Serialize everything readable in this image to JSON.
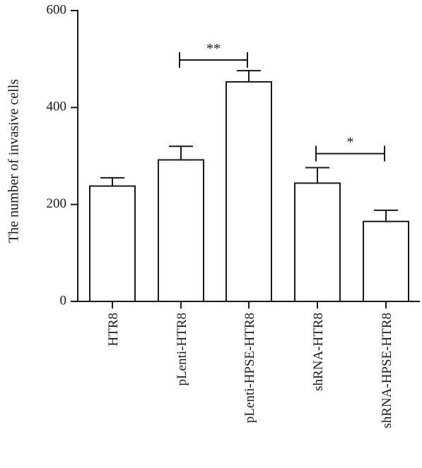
{
  "chart_data": {
    "type": "bar",
    "title": "",
    "xlabel": "",
    "ylabel": "The number of invasive cells",
    "ylim": [
      0,
      600
    ],
    "yticks": [
      0,
      200,
      400,
      600
    ],
    "grid": false,
    "legend": "none",
    "categories": [
      "HTR8",
      "pLenti-HTR8",
      "pLenti-HPSE-HTR8",
      "shRNA-HTR8",
      "shRNA-HPSE-HTR8"
    ],
    "values": [
      238,
      292,
      453,
      244,
      165
    ],
    "errors": [
      17,
      28,
      23,
      32,
      23
    ],
    "significance": [
      {
        "from": 1,
        "to": 2,
        "label": "**",
        "y": 498
      },
      {
        "from": 3,
        "to": 4,
        "label": "*",
        "y": 305
      }
    ],
    "colors": {
      "bar_fill": "#ffffff",
      "stroke": "#1a1a1a"
    }
  }
}
